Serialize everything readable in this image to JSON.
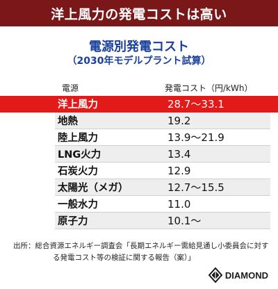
{
  "header": {
    "title": "洋上風力の発電コストは高い"
  },
  "chart_data": {
    "type": "table",
    "title": "電源別発電コスト",
    "subtitle": "（2030年モデルプラント試算）",
    "columns": [
      "電源",
      "発電コスト（円/kWh）"
    ],
    "rows": [
      {
        "source": "洋上風力",
        "cost": "28.7～33.1",
        "highlight": true
      },
      {
        "source": "地熱",
        "cost": "19.2"
      },
      {
        "source": "陸上風力",
        "cost": "13.9～21.9"
      },
      {
        "source": "LNG火力",
        "cost": "13.4"
      },
      {
        "source": "石炭火力",
        "cost": "12.9"
      },
      {
        "source": "太陽光（メガ）",
        "cost": "12.7～15.5"
      },
      {
        "source": "一般水力",
        "cost": "11.0"
      },
      {
        "source": "原子力",
        "cost": "10.1～"
      }
    ]
  },
  "footer": {
    "source_line1": "出所：総合資源エネルギー調査会「長期エネルギー需給見通し小委員会に対す",
    "source_line2": "る発電コスト等の検証に関する報告（案）」",
    "logo_text": "DIAMOND"
  },
  "colors": {
    "header_bg": "#7a1718",
    "highlight": "#e21a1a",
    "title": "#1a3f9c"
  }
}
